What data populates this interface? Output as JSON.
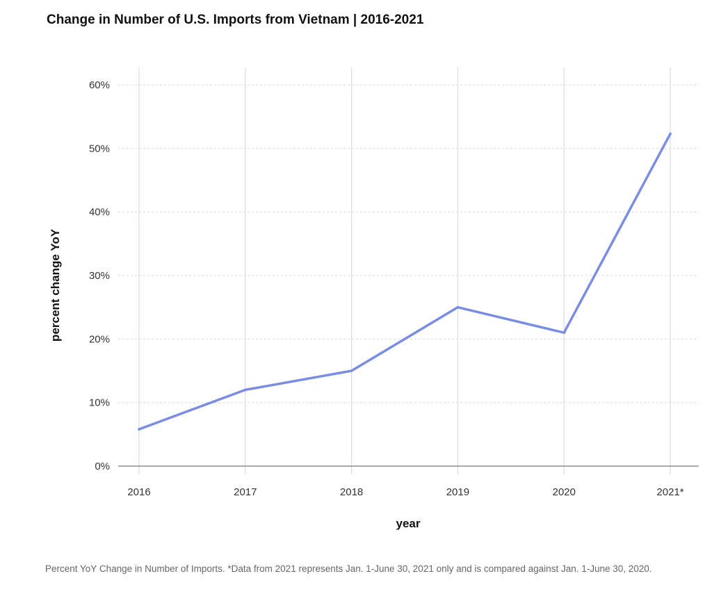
{
  "chart_data": {
    "type": "line",
    "title": "Change in Number of U.S. Imports from Vietnam | 2016-2021",
    "xlabel": "year",
    "ylabel": "percent change YoY",
    "categories": [
      "2016",
      "2017",
      "2018",
      "2019",
      "2020",
      "2021*"
    ],
    "series": [
      {
        "values": [
          5.8,
          12.0,
          15.0,
          25.0,
          21.0,
          52.3
        ],
        "color": "#7b8de3"
      }
    ],
    "ylim": [
      0,
      60
    ],
    "yticks": [
      0,
      10,
      20,
      30,
      40,
      50,
      60
    ],
    "ytick_labels": [
      "0%",
      "10%",
      "20%",
      "30%",
      "40%",
      "50%",
      "60%"
    ],
    "grid": true,
    "legend": "none"
  },
  "footnote": "Percent YoY Change in Number of Imports. *Data from 2021 represents Jan. 1-June 30, 2021 only and is compared against Jan. 1-June 30, 2020."
}
